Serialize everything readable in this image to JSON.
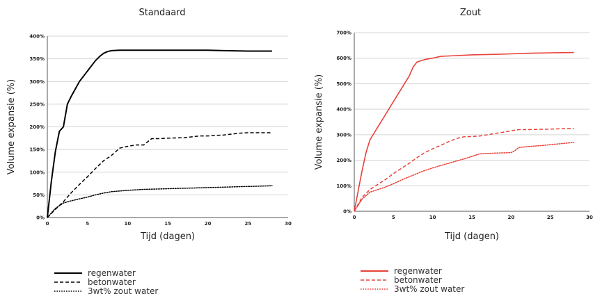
{
  "chart_data": [
    {
      "type": "line",
      "title": "Standaard",
      "xlabel": "Tijd (dagen)",
      "ylabel": "Volume expansie (%)",
      "xlim": [
        0,
        30
      ],
      "ylim": [
        0,
        400
      ],
      "yticks": [
        "0%",
        "50%",
        "100%",
        "150%",
        "200%",
        "250%",
        "300%",
        "350%",
        "400%"
      ],
      "xticks": [
        "0",
        "5",
        "10",
        "15",
        "20",
        "25",
        "30"
      ],
      "grid": "horizontal",
      "legend": "bottom-left",
      "line_color": "#000000",
      "series": [
        {
          "name": "regenwater",
          "style": "solid",
          "x": [
            0,
            0.5,
            1,
            1.5,
            2,
            2.5,
            3,
            4,
            5,
            6,
            6.5,
            7,
            7.5,
            8,
            9,
            10,
            12,
            15,
            18,
            20,
            22,
            25,
            28
          ],
          "y": [
            0,
            80,
            145,
            190,
            200,
            250,
            268,
            300,
            323,
            346,
            355,
            362,
            366,
            368,
            369,
            369,
            369,
            369,
            369,
            369,
            368,
            367,
            367
          ]
        },
        {
          "name": "betonwater",
          "style": "dashed",
          "x": [
            0,
            1,
            2,
            3,
            4,
            5,
            6,
            7,
            8,
            9,
            10,
            11,
            12,
            13,
            14,
            15,
            17,
            18,
            19,
            20,
            22,
            24,
            25,
            26,
            28
          ],
          "y": [
            0,
            18,
            35,
            55,
            73,
            90,
            108,
            125,
            137,
            153,
            157,
            160,
            160,
            174,
            174,
            175,
            176,
            178,
            180,
            180,
            182,
            186,
            187,
            187,
            187
          ]
        },
        {
          "name": "3wt% zout water",
          "style": "dotted",
          "x": [
            0,
            1,
            2,
            3,
            4,
            5,
            6,
            7,
            8,
            10,
            12,
            14,
            16,
            18,
            20,
            22,
            24,
            26,
            28
          ],
          "y": [
            0,
            20,
            32,
            37,
            41,
            45,
            50,
            54,
            57,
            60,
            62,
            63,
            64,
            65,
            66,
            67,
            68,
            69,
            70
          ]
        }
      ]
    },
    {
      "type": "line",
      "title": "Zout",
      "xlabel": "Tijd (dagen)",
      "ylabel": "Volume expansie (%)",
      "xlim": [
        0,
        30
      ],
      "ylim": [
        0,
        700
      ],
      "yticks": [
        "0%",
        "100%",
        "200%",
        "300%",
        "400%",
        "500%",
        "600%",
        "700%"
      ],
      "xticks": [
        "0",
        "5",
        "10",
        "15",
        "20",
        "25",
        "30"
      ],
      "grid": "horizontal",
      "legend": "bottom-left",
      "line_color": "#e8413a",
      "series": [
        {
          "name": "regenwater",
          "style": "solid",
          "x": [
            0,
            0.5,
            1,
            1.5,
            2,
            2.5,
            3,
            4,
            5,
            6,
            7,
            7.5,
            8,
            9,
            10,
            11,
            13,
            15,
            18,
            20,
            22,
            25,
            28
          ],
          "y": [
            0,
            80,
            160,
            230,
            280,
            305,
            330,
            380,
            430,
            480,
            530,
            565,
            585,
            595,
            600,
            607,
            610,
            613,
            615,
            617,
            619,
            621,
            622
          ]
        },
        {
          "name": "betonwater",
          "style": "dashed",
          "x": [
            0,
            1,
            2,
            3,
            4,
            5,
            6,
            7,
            8,
            9,
            10,
            11,
            12,
            13,
            14,
            15,
            16,
            17,
            18,
            19,
            20,
            21,
            22,
            25,
            28
          ],
          "y": [
            0,
            55,
            85,
            105,
            125,
            148,
            168,
            188,
            210,
            230,
            245,
            258,
            272,
            285,
            292,
            293,
            295,
            300,
            305,
            310,
            315,
            320,
            320,
            322,
            325
          ]
        },
        {
          "name": "3wt% zout water",
          "style": "dotted",
          "x": [
            0,
            1,
            2,
            3,
            4,
            5,
            6,
            7,
            8,
            9,
            10,
            12,
            14,
            16,
            18,
            20,
            20.5,
            21,
            22,
            24,
            26,
            28
          ],
          "y": [
            0,
            48,
            75,
            85,
            95,
            108,
            122,
            135,
            148,
            160,
            170,
            188,
            205,
            225,
            228,
            230,
            238,
            250,
            253,
            258,
            264,
            270
          ]
        }
      ]
    }
  ]
}
